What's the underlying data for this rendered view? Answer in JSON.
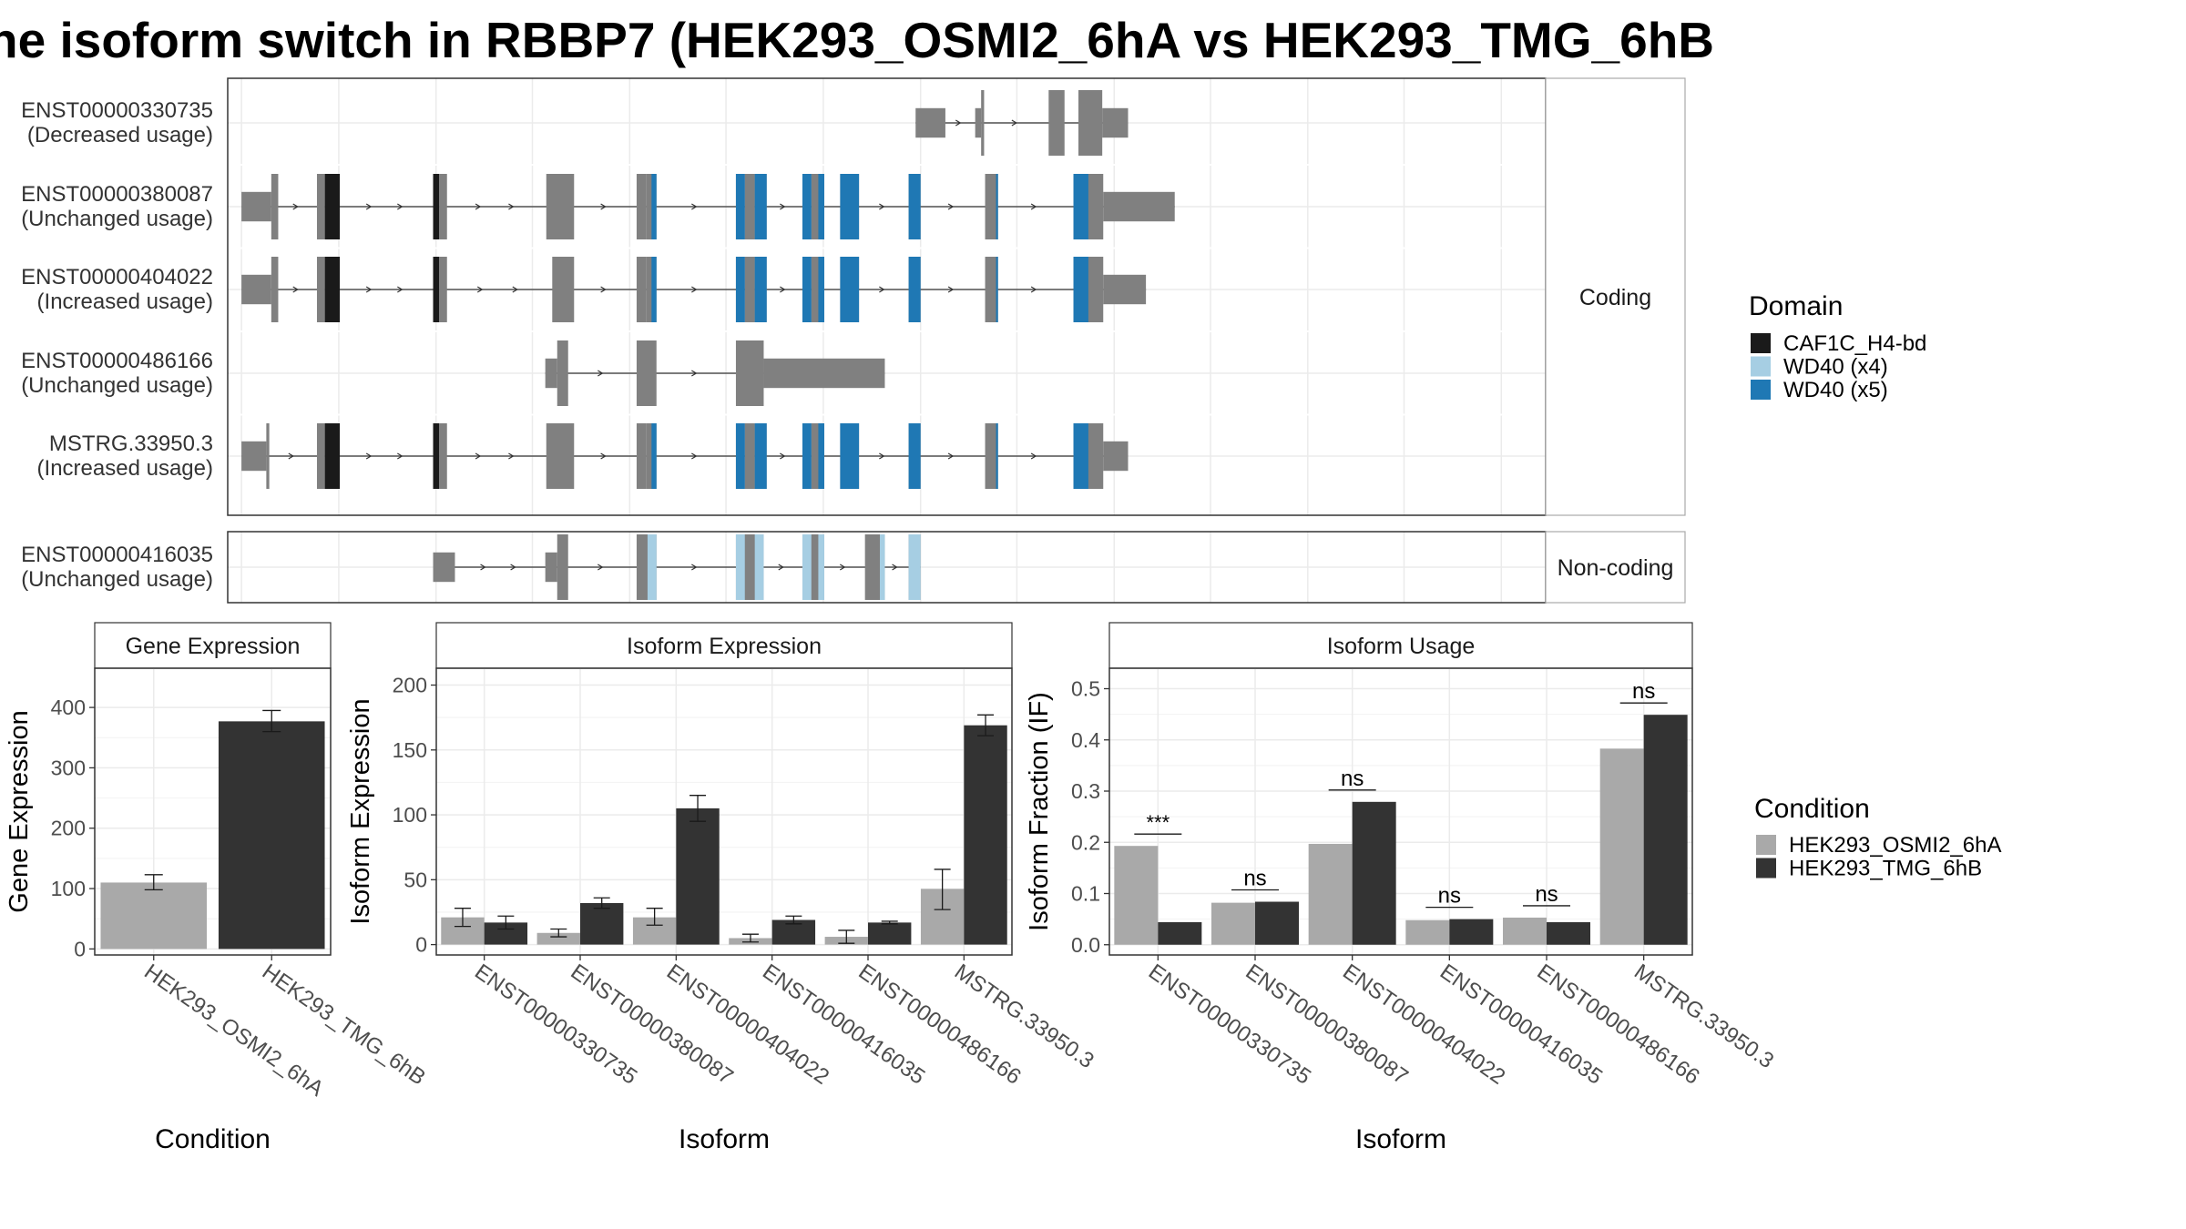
{
  "title": "he isoform switch in RBBP7 (HEK293_OSMI2_6hA vs HEK293_TMG_6hB",
  "colors": {
    "exon": "#808080",
    "CAF1C_H4-bd": "#1a1a1a",
    "WD40 (x4)": "#a6cee3",
    "WD40 (x5)": "#1f78b4",
    "cond_A": "#a9a9a9",
    "cond_B": "#333333"
  },
  "domain_legend": {
    "title": "Domain",
    "items": [
      "CAF1C_H4-bd",
      "WD40 (x4)",
      "WD40 (x5)"
    ]
  },
  "condition_legend": {
    "title": "Condition",
    "items": [
      "HEK293_OSMI2_6hA",
      "HEK293_TMG_6hB"
    ]
  },
  "structure": {
    "coding_label": "Coding",
    "noncoding_label": "Non-coding",
    "genomic_range": [
      0,
      100
    ],
    "coding": [
      {
        "id": "ENST00000330735",
        "usage": "(Decreased usage)",
        "exons": [
          [
            63.6,
            66.6,
            0.45
          ],
          [
            69.6,
            70.2,
            0.45
          ],
          [
            70.2,
            70.5,
            1.0
          ],
          [
            77.0,
            78.6,
            1.0
          ],
          [
            80.0,
            82.4,
            1.0
          ],
          [
            82.4,
            85.0,
            0.45
          ]
        ],
        "domains": []
      },
      {
        "id": "ENST00000380087",
        "usage": "(Unchanged usage)",
        "exons": [
          [
            -4.3,
            -1.3,
            0.45
          ],
          [
            -1.3,
            -0.6,
            1.0
          ],
          [
            3.3,
            4.1,
            1.0
          ],
          [
            4.1,
            5.6,
            1.0
          ],
          [
            15.0,
            15.6,
            1.0
          ],
          [
            15.6,
            16.4,
            1.0
          ],
          [
            26.4,
            29.2,
            1.0
          ],
          [
            35.5,
            36.5,
            1.0
          ],
          [
            36.5,
            37.5,
            1.0
          ],
          [
            45.5,
            46.4,
            1.0
          ],
          [
            46.4,
            47.4,
            1.0
          ],
          [
            47.4,
            48.6,
            1.0
          ],
          [
            52.2,
            53.1,
            1.0
          ],
          [
            53.1,
            54.4,
            1.0
          ],
          [
            56.0,
            57.9,
            1.0
          ],
          [
            62.9,
            64.1,
            1.0
          ],
          [
            70.6,
            71.9,
            1.0
          ],
          [
            79.5,
            81.0,
            1.0
          ],
          [
            80.5,
            82.5,
            1.0
          ],
          [
            82.5,
            89.7,
            0.45
          ]
        ],
        "domains": [
          [
            4.1,
            5.6,
            "CAF1C_H4-bd"
          ],
          [
            15.0,
            15.6,
            "CAF1C_H4-bd"
          ],
          [
            37.0,
            37.5,
            "WD40 (x5)"
          ],
          [
            45.5,
            46.4,
            "WD40 (x5)"
          ],
          [
            47.4,
            48.6,
            "WD40 (x5)"
          ],
          [
            52.2,
            53.1,
            "WD40 (x5)"
          ],
          [
            53.8,
            54.4,
            "WD40 (x5)"
          ],
          [
            56.0,
            57.9,
            "WD40 (x5)"
          ],
          [
            62.9,
            64.1,
            "WD40 (x5)"
          ],
          [
            71.7,
            71.9,
            "WD40 (x5)"
          ],
          [
            79.5,
            81.0,
            "WD40 (x5)"
          ]
        ]
      },
      {
        "id": "ENST00000404022",
        "usage": "(Increased usage)",
        "exons": [
          [
            -4.3,
            -1.3,
            0.45
          ],
          [
            -1.3,
            -0.6,
            1.0
          ],
          [
            3.3,
            4.1,
            1.0
          ],
          [
            4.1,
            5.6,
            1.0
          ],
          [
            15.0,
            15.6,
            1.0
          ],
          [
            15.6,
            16.4,
            1.0
          ],
          [
            27.0,
            29.2,
            1.0
          ],
          [
            35.5,
            36.5,
            1.0
          ],
          [
            36.5,
            37.5,
            1.0
          ],
          [
            45.5,
            46.4,
            1.0
          ],
          [
            46.4,
            47.4,
            1.0
          ],
          [
            47.4,
            48.6,
            1.0
          ],
          [
            52.2,
            53.1,
            1.0
          ],
          [
            53.1,
            54.4,
            1.0
          ],
          [
            56.0,
            57.9,
            1.0
          ],
          [
            62.9,
            64.1,
            1.0
          ],
          [
            70.6,
            71.9,
            1.0
          ],
          [
            79.5,
            81.0,
            1.0
          ],
          [
            80.5,
            82.5,
            1.0
          ],
          [
            82.5,
            86.8,
            0.45
          ]
        ],
        "domains": [
          [
            4.1,
            5.6,
            "CAF1C_H4-bd"
          ],
          [
            15.0,
            15.6,
            "CAF1C_H4-bd"
          ],
          [
            37.0,
            37.5,
            "WD40 (x5)"
          ],
          [
            45.5,
            46.4,
            "WD40 (x5)"
          ],
          [
            47.4,
            48.6,
            "WD40 (x5)"
          ],
          [
            52.2,
            53.1,
            "WD40 (x5)"
          ],
          [
            53.8,
            54.4,
            "WD40 (x5)"
          ],
          [
            56.0,
            57.9,
            "WD40 (x5)"
          ],
          [
            62.9,
            64.1,
            "WD40 (x5)"
          ],
          [
            71.7,
            71.9,
            "WD40 (x5)"
          ],
          [
            79.5,
            81.0,
            "WD40 (x5)"
          ]
        ]
      },
      {
        "id": "ENST00000486166",
        "usage": "(Unchanged usage)",
        "exons": [
          [
            26.3,
            27.5,
            0.45
          ],
          [
            27.5,
            28.6,
            1.0
          ],
          [
            35.5,
            37.5,
            1.0
          ],
          [
            45.5,
            48.3,
            1.0
          ],
          [
            48.3,
            60.5,
            0.45
          ]
        ],
        "domains": []
      },
      {
        "id": "MSTRG.33950.3",
        "usage": "(Increased usage)",
        "exons": [
          [
            -4.3,
            -1.8,
            0.45
          ],
          [
            -1.8,
            -1.5,
            1.0
          ],
          [
            3.3,
            4.1,
            1.0
          ],
          [
            4.1,
            5.6,
            1.0
          ],
          [
            15.0,
            15.6,
            1.0
          ],
          [
            15.6,
            16.4,
            1.0
          ],
          [
            26.4,
            29.2,
            1.0
          ],
          [
            35.5,
            36.5,
            1.0
          ],
          [
            36.5,
            37.5,
            1.0
          ],
          [
            45.5,
            46.4,
            1.0
          ],
          [
            46.4,
            47.4,
            1.0
          ],
          [
            47.4,
            48.6,
            1.0
          ],
          [
            52.2,
            53.1,
            1.0
          ],
          [
            53.1,
            54.4,
            1.0
          ],
          [
            56.0,
            57.9,
            1.0
          ],
          [
            62.9,
            64.1,
            1.0
          ],
          [
            70.6,
            71.9,
            1.0
          ],
          [
            79.5,
            81.0,
            1.0
          ],
          [
            80.5,
            82.5,
            1.0
          ],
          [
            82.5,
            85.0,
            0.45
          ]
        ],
        "domains": [
          [
            4.1,
            5.6,
            "CAF1C_H4-bd"
          ],
          [
            15.0,
            15.6,
            "CAF1C_H4-bd"
          ],
          [
            37.0,
            37.5,
            "WD40 (x5)"
          ],
          [
            45.5,
            46.4,
            "WD40 (x5)"
          ],
          [
            47.4,
            48.6,
            "WD40 (x5)"
          ],
          [
            52.2,
            53.1,
            "WD40 (x5)"
          ],
          [
            53.8,
            54.4,
            "WD40 (x5)"
          ],
          [
            56.0,
            57.9,
            "WD40 (x5)"
          ],
          [
            62.9,
            64.1,
            "WD40 (x5)"
          ],
          [
            71.7,
            71.9,
            "WD40 (x5)"
          ],
          [
            79.5,
            81.0,
            "WD40 (x5)"
          ]
        ]
      }
    ],
    "noncoding": [
      {
        "id": "ENST00000416035",
        "usage": "(Unchanged usage)",
        "exons": [
          [
            15.0,
            17.2,
            0.45
          ],
          [
            26.3,
            27.5,
            0.45
          ],
          [
            27.5,
            28.6,
            1.0
          ],
          [
            35.5,
            37.5,
            1.0
          ],
          [
            45.5,
            48.3,
            1.0
          ],
          [
            52.2,
            54.4,
            1.0
          ],
          [
            58.5,
            60.5,
            1.0
          ],
          [
            62.9,
            64.1,
            1.0
          ]
        ],
        "domains": [
          [
            36.6,
            37.5,
            "WD40 (x4)"
          ],
          [
            45.5,
            46.4,
            "WD40 (x4)"
          ],
          [
            47.4,
            48.3,
            "WD40 (x4)"
          ],
          [
            52.2,
            53.1,
            "WD40 (x4)"
          ],
          [
            53.8,
            54.4,
            "WD40 (x4)"
          ],
          [
            60.0,
            60.5,
            "WD40 (x4)"
          ],
          [
            62.9,
            64.1,
            "WD40 (x4)"
          ]
        ]
      }
    ]
  },
  "chart_data": [
    {
      "type": "bar",
      "title": "Gene Expression",
      "xlabel": "Condition",
      "ylabel": "Gene Expression",
      "categories": [
        "HEK293_OSMI2_6hA",
        "HEK293_TMG_6hB"
      ],
      "values": [
        110,
        377
      ],
      "errors": [
        [
          98,
          123
        ],
        [
          360,
          395
        ]
      ],
      "ylim": [
        -10,
        465
      ],
      "yticks": [
        0,
        100,
        200,
        300,
        400
      ],
      "grid": true
    },
    {
      "type": "bar",
      "title": "Isoform Expression",
      "xlabel": "Isoform",
      "ylabel": "Isoform Expression",
      "categories": [
        "ENST00000330735",
        "ENST00000380087",
        "ENST00000404022",
        "ENST00000416035",
        "ENST00000486166",
        "MSTRG.33950.3"
      ],
      "series": [
        {
          "name": "HEK293_OSMI2_6hA",
          "values": [
            21,
            9,
            21,
            5,
            6,
            43
          ],
          "errors": [
            [
              14,
              28
            ],
            [
              6,
              12
            ],
            [
              15,
              28
            ],
            [
              2,
              8
            ],
            [
              1,
              11
            ],
            [
              27,
              58
            ]
          ]
        },
        {
          "name": "HEK293_TMG_6hB",
          "values": [
            17,
            32,
            105,
            19,
            17,
            169
          ],
          "errors": [
            [
              12,
              22
            ],
            [
              28,
              36
            ],
            [
              95,
              115
            ],
            [
              16,
              22
            ],
            [
              16,
              18
            ],
            [
              161,
              177
            ]
          ]
        }
      ],
      "ylim": [
        -8,
        213
      ],
      "yticks": [
        0,
        50,
        100,
        150,
        200
      ],
      "grid": true
    },
    {
      "type": "bar",
      "title": "Isoform Usage",
      "xlabel": "Isoform",
      "ylabel": "Isoform Fraction (IF)",
      "categories": [
        "ENST00000330735",
        "ENST00000380087",
        "ENST00000404022",
        "ENST00000416035",
        "ENST00000486166",
        "MSTRG.33950.3"
      ],
      "series": [
        {
          "name": "HEK293_OSMI2_6hA",
          "values": [
            0.193,
            0.082,
            0.197,
            0.048,
            0.053,
            0.383
          ]
        },
        {
          "name": "HEK293_TMG_6hB",
          "values": [
            0.044,
            0.084,
            0.279,
            0.05,
            0.044,
            0.449
          ]
        }
      ],
      "significance": [
        "***",
        "ns",
        "ns",
        "ns",
        "ns",
        "ns"
      ],
      "ylim": [
        -0.02,
        0.54
      ],
      "yticks": [
        0.0,
        0.1,
        0.2,
        0.3,
        0.4,
        0.5
      ],
      "grid": true
    }
  ]
}
